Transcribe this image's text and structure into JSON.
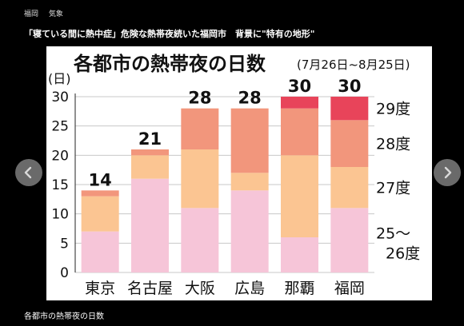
{
  "breadcrumb": {
    "items": [
      "福岡",
      "気象"
    ]
  },
  "headline": "「寝ている間に熱中症」危険な熱帯夜続いた福岡市　背景に\"特有の地形\"",
  "caption": "各都市の熱帯夜の日数",
  "nav": {
    "prev_icon": "chevron-left-icon",
    "next_icon": "chevron-right-icon"
  },
  "colors": {
    "page_bg": "#000000",
    "panel_bg": "#ffffff",
    "button_bg": "#7d7d7d"
  },
  "chart_data": {
    "type": "bar",
    "stacked": true,
    "title": "各都市の熱帯夜の日数",
    "subtitle": "(7月26日~8月25日)",
    "ylabel": "(日)",
    "ylim": [
      0,
      30
    ],
    "yticks": [
      "0",
      "5",
      "10",
      "15",
      "20",
      "25",
      "30"
    ],
    "grid": true,
    "categories": [
      "東京",
      "名古屋",
      "大阪",
      "広島",
      "那覇",
      "福岡"
    ],
    "totals": [
      "14",
      "21",
      "28",
      "28",
      "30",
      "30"
    ],
    "series": [
      {
        "name": "25〜26度",
        "color": "#f6c5d8",
        "values": [
          7,
          16,
          11,
          14,
          6,
          11
        ]
      },
      {
        "name": "27度",
        "color": "#fbc592",
        "values": [
          6,
          4,
          10,
          3,
          14,
          7
        ]
      },
      {
        "name": "28度",
        "color": "#f2967c",
        "values": [
          1,
          1,
          7,
          11,
          8,
          8
        ]
      },
      {
        "name": "29度",
        "color": "#e8445a",
        "values": [
          0,
          0,
          0,
          0,
          2,
          4
        ]
      }
    ],
    "legend_placement": "right"
  }
}
